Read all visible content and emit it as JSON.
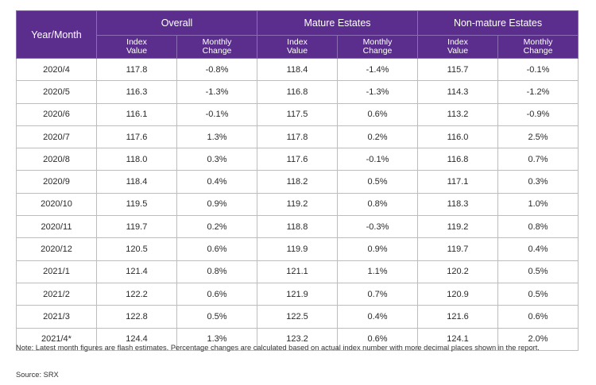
{
  "chart_data": {
    "type": "table",
    "headers": {
      "year_month": "Year/Month",
      "groups": [
        "Overall",
        "Mature Estates",
        "Non-mature Estates"
      ],
      "sub_line1": [
        "Index",
        "Monthly"
      ],
      "sub_line2": [
        "Value",
        "Change"
      ]
    },
    "rows": [
      [
        "2020/4",
        "117.8",
        "-0.8%",
        "118.4",
        "-1.4%",
        "115.7",
        "-0.1%"
      ],
      [
        "2020/5",
        "116.3",
        "-1.3%",
        "116.8",
        "-1.3%",
        "114.3",
        "-1.2%"
      ],
      [
        "2020/6",
        "116.1",
        "-0.1%",
        "117.5",
        "0.6%",
        "113.2",
        "-0.9%"
      ],
      [
        "2020/7",
        "117.6",
        "1.3%",
        "117.8",
        "0.2%",
        "116.0",
        "2.5%"
      ],
      [
        "2020/8",
        "118.0",
        "0.3%",
        "117.6",
        "-0.1%",
        "116.8",
        "0.7%"
      ],
      [
        "2020/9",
        "118.4",
        "0.4%",
        "118.2",
        "0.5%",
        "117.1",
        "0.3%"
      ],
      [
        "2020/10",
        "119.5",
        "0.9%",
        "119.2",
        "0.8%",
        "118.3",
        "1.0%"
      ],
      [
        "2020/11",
        "119.7",
        "0.2%",
        "118.8",
        "-0.3%",
        "119.2",
        "0.8%"
      ],
      [
        "2020/12",
        "120.5",
        "0.6%",
        "119.9",
        "0.9%",
        "119.7",
        "0.4%"
      ],
      [
        "2021/1",
        "121.4",
        "0.8%",
        "121.1",
        "1.1%",
        "120.2",
        "0.5%"
      ],
      [
        "2021/2",
        "122.2",
        "0.6%",
        "121.9",
        "0.7%",
        "120.9",
        "0.5%"
      ],
      [
        "2021/3",
        "122.8",
        "0.5%",
        "122.5",
        "0.4%",
        "121.6",
        "0.6%"
      ],
      [
        "2021/4*",
        "124.4",
        "1.3%",
        "123.2",
        "0.6%",
        "124.1",
        "2.0%"
      ]
    ],
    "colors": {
      "header_bg": "#5b2e8e",
      "header_text": "#ffffff",
      "grid": "#bdbdbd"
    }
  },
  "note": "Note: Latest month figures are flash estimates. Percentage changes are calculated based on actual index number with more decimal places shown in the report.",
  "source": "Source: SRX"
}
